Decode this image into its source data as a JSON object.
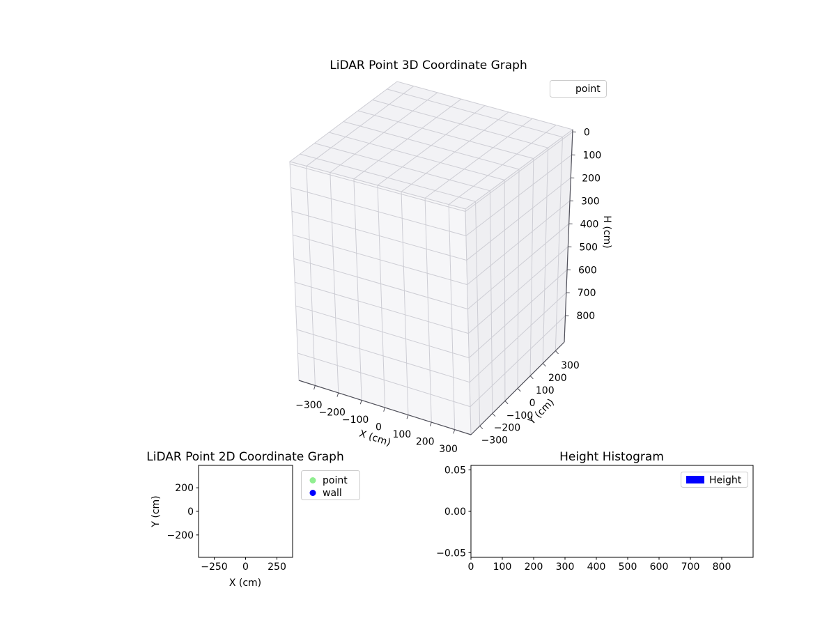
{
  "figure": {
    "background": "#ffffff"
  },
  "chart_data": [
    {
      "id": "lidar-3d",
      "type": "scatter3d",
      "title": "LiDAR Point 3D Coordinate Graph",
      "xlabel": "X (cm)",
      "ylabel": "Y (cm)",
      "zlabel": "H (cm)",
      "xlim": [
        -370,
        370
      ],
      "ylim": [
        -370,
        370
      ],
      "zlim": [
        -10,
        915
      ],
      "zaxis_inverted": true,
      "xticks": [
        -300,
        -200,
        -100,
        0,
        100,
        200,
        300
      ],
      "xtick_labels": [
        "−300",
        "−200",
        "−100",
        "0",
        "100",
        "200",
        "300"
      ],
      "yticks": [
        -300,
        -200,
        -100,
        0,
        100,
        200,
        300
      ],
      "ytick_labels": [
        "−300",
        "−200",
        "−100",
        "0",
        "100",
        "200",
        "300"
      ],
      "zticks": [
        0,
        100,
        200,
        300,
        400,
        500,
        600,
        700,
        800
      ],
      "ztick_labels": [
        "0",
        "100",
        "200",
        "300",
        "400",
        "500",
        "600",
        "700",
        "800"
      ],
      "grid": true,
      "legend": [
        {
          "label": "point"
        }
      ],
      "points": []
    },
    {
      "id": "lidar-2d",
      "type": "scatter",
      "title": "LiDAR Point 2D Coordinate Graph",
      "xlabel": "X (cm)",
      "ylabel": "Y (cm)",
      "xlim": [
        -375,
        375
      ],
      "ylim": [
        -390,
        390
      ],
      "xticks": [
        -250,
        0,
        250
      ],
      "xtick_labels": [
        "−250",
        "0",
        "250"
      ],
      "yticks": [
        -200,
        0,
        200
      ],
      "ytick_labels": [
        "−200",
        "0",
        "200"
      ],
      "grid": false,
      "legend": [
        {
          "label": "point",
          "color": "#90ee90"
        },
        {
          "label": "wall",
          "color": "#0000ff"
        }
      ],
      "points": []
    },
    {
      "id": "height-histogram",
      "type": "bar",
      "title": "Height Histogram",
      "xlabel": "",
      "ylabel": "",
      "xlim": [
        0,
        900
      ],
      "ylim": [
        -0.0555,
        0.0555
      ],
      "xticks": [
        0,
        100,
        200,
        300,
        400,
        500,
        600,
        700,
        800
      ],
      "xtick_labels": [
        "0",
        "100",
        "200",
        "300",
        "400",
        "500",
        "600",
        "700",
        "800"
      ],
      "yticks": [
        -0.05,
        0,
        0.05
      ],
      "ytick_labels": [
        "−0.05",
        "0.00",
        "0.05"
      ],
      "grid": false,
      "legend": [
        {
          "label": "Height",
          "color": "#0000ff"
        }
      ],
      "values": []
    }
  ]
}
